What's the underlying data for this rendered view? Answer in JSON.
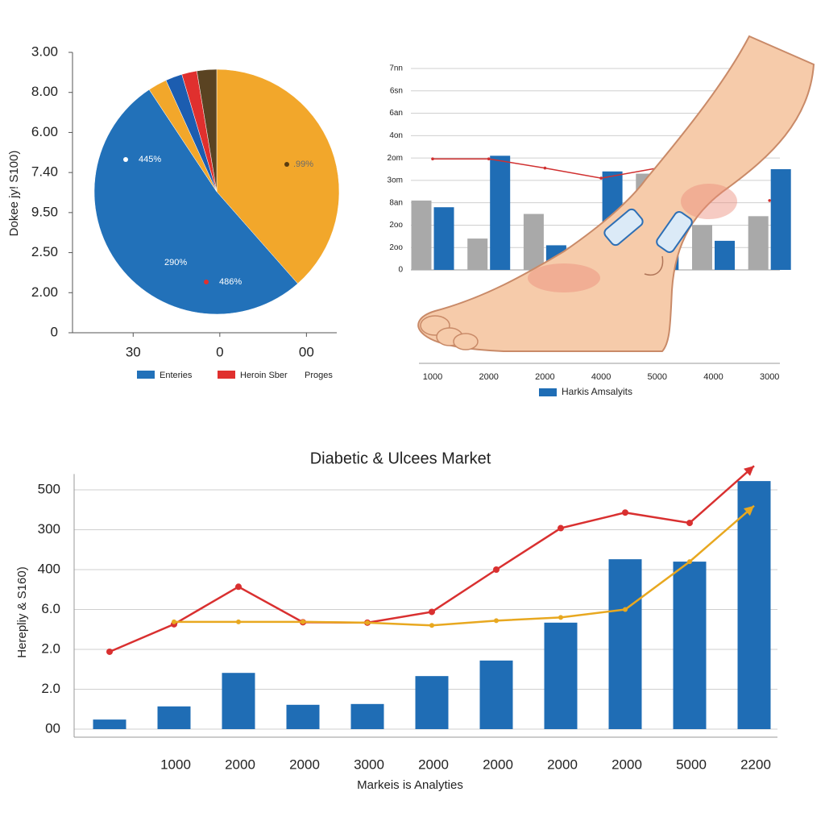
{
  "chart_data": [
    {
      "type": "pie",
      "ylabel": "Dokee jy! S100)",
      "ylim": [
        0,
        7
      ],
      "yticks": [
        {
          "value": 7,
          "label": "3.00"
        },
        {
          "value": 6,
          "label": "8.00"
        },
        {
          "value": 5,
          "label": "6.00"
        },
        {
          "value": 4,
          "label": "7.40"
        },
        {
          "value": 3,
          "label": "9.50"
        },
        {
          "value": 2,
          "label": "2.50"
        },
        {
          "value": 1,
          "label": "2.00"
        },
        0
      ],
      "xlim": [
        -0.7,
        2.35
      ],
      "xticks": [
        {
          "value": 0,
          "label": "30"
        },
        {
          "value": 1,
          "label": "0"
        },
        {
          "value": 2,
          "label": "00"
        }
      ],
      "values": [
        38.5,
        52.2,
        2.5,
        2.2,
        2,
        2.6
      ],
      "colors": [
        "#f2a72b",
        "#2271b9",
        "#f2a72b",
        "#1c5db0",
        "#e0302e",
        "#5a4322"
      ],
      "annotations": [
        "445%",
        ".99%",
        "290%",
        "486%"
      ],
      "legend": [
        {
          "name": "Enteries",
          "color": "#2271b9"
        },
        {
          "name": "Heroin Sber",
          "color": "#e0302e"
        },
        {
          "name": "Proges"
        }
      ]
    },
    {
      "type": "bar",
      "ylim": [
        0,
        9
      ],
      "yticks": [
        {
          "value": 9,
          "label": "7nn"
        },
        {
          "value": 8,
          "label": "6sn"
        },
        {
          "value": 7,
          "label": "6an"
        },
        {
          "value": 6,
          "label": "4on"
        },
        {
          "value": 5,
          "label": "2om"
        },
        {
          "value": 4,
          "label": "3om"
        },
        {
          "value": 3,
          "label": "8an"
        },
        {
          "value": 2,
          "label": "2oo"
        },
        {
          "value": 1,
          "label": "2oo"
        },
        0
      ],
      "grid": true,
      "categories": [
        "1000",
        "2000",
        "2000",
        "4000",
        "5000",
        "4000",
        "3000"
      ],
      "series": [
        {
          "color": "#a9a9a9",
          "values": [
            3.1,
            1.4,
            2.5,
            null,
            4.3,
            2.0,
            2.4
          ]
        },
        {
          "name": "Harkis Amsalyits",
          "color": "#1f6db5",
          "values": [
            2.8,
            5.1,
            1.1,
            4.4,
            3.0,
            1.3,
            4.5
          ]
        },
        {
          "type": "line",
          "color": "#d03030",
          "values": [
            4.96,
            4.96,
            4.55,
            4.1,
            4.55,
            null,
            3.1
          ]
        }
      ]
    },
    {
      "type": "bar",
      "title": "Diabetic & Ulcees Market",
      "xlabel": "Markeis is Analyties",
      "ylabel": "Hereplіy & S160)",
      "ylim": [
        0,
        6.7
      ],
      "yticks": [
        {
          "value": 6,
          "label": "500"
        },
        {
          "value": 5,
          "label": "300"
        },
        {
          "value": 4,
          "label": "400"
        },
        {
          "value": 3,
          "label": "6.0"
        },
        {
          "value": 2,
          "label": "2.0"
        },
        {
          "value": 1,
          "label": "2.0"
        },
        {
          "value": 0,
          "label": "00"
        }
      ],
      "grid": true,
      "categories": [
        null,
        "1000",
        "2000",
        "2000",
        "3000",
        "2000",
        "2000",
        "2000",
        "2000",
        "5000",
        "2200"
      ],
      "series": [
        {
          "color": "#1f6db5",
          "values": [
            0.24,
            0.57,
            1.41,
            0.61,
            0.63,
            1.33,
            1.72,
            2.67,
            4.26,
            4.2,
            6.22
          ]
        },
        {
          "type": "line",
          "color": "#d93030",
          "values": [
            1.94,
            2.63,
            3.57,
            2.68,
            2.67,
            2.94,
            4.0,
            5.04,
            5.43,
            5.17,
            6.6
          ]
        },
        {
          "type": "line",
          "color": "#e8a820",
          "values": [
            null,
            2.69,
            2.69,
            2.69,
            2.67,
            2.6,
            2.72,
            2.8,
            3.0,
            4.2,
            5.6
          ]
        }
      ]
    }
  ]
}
